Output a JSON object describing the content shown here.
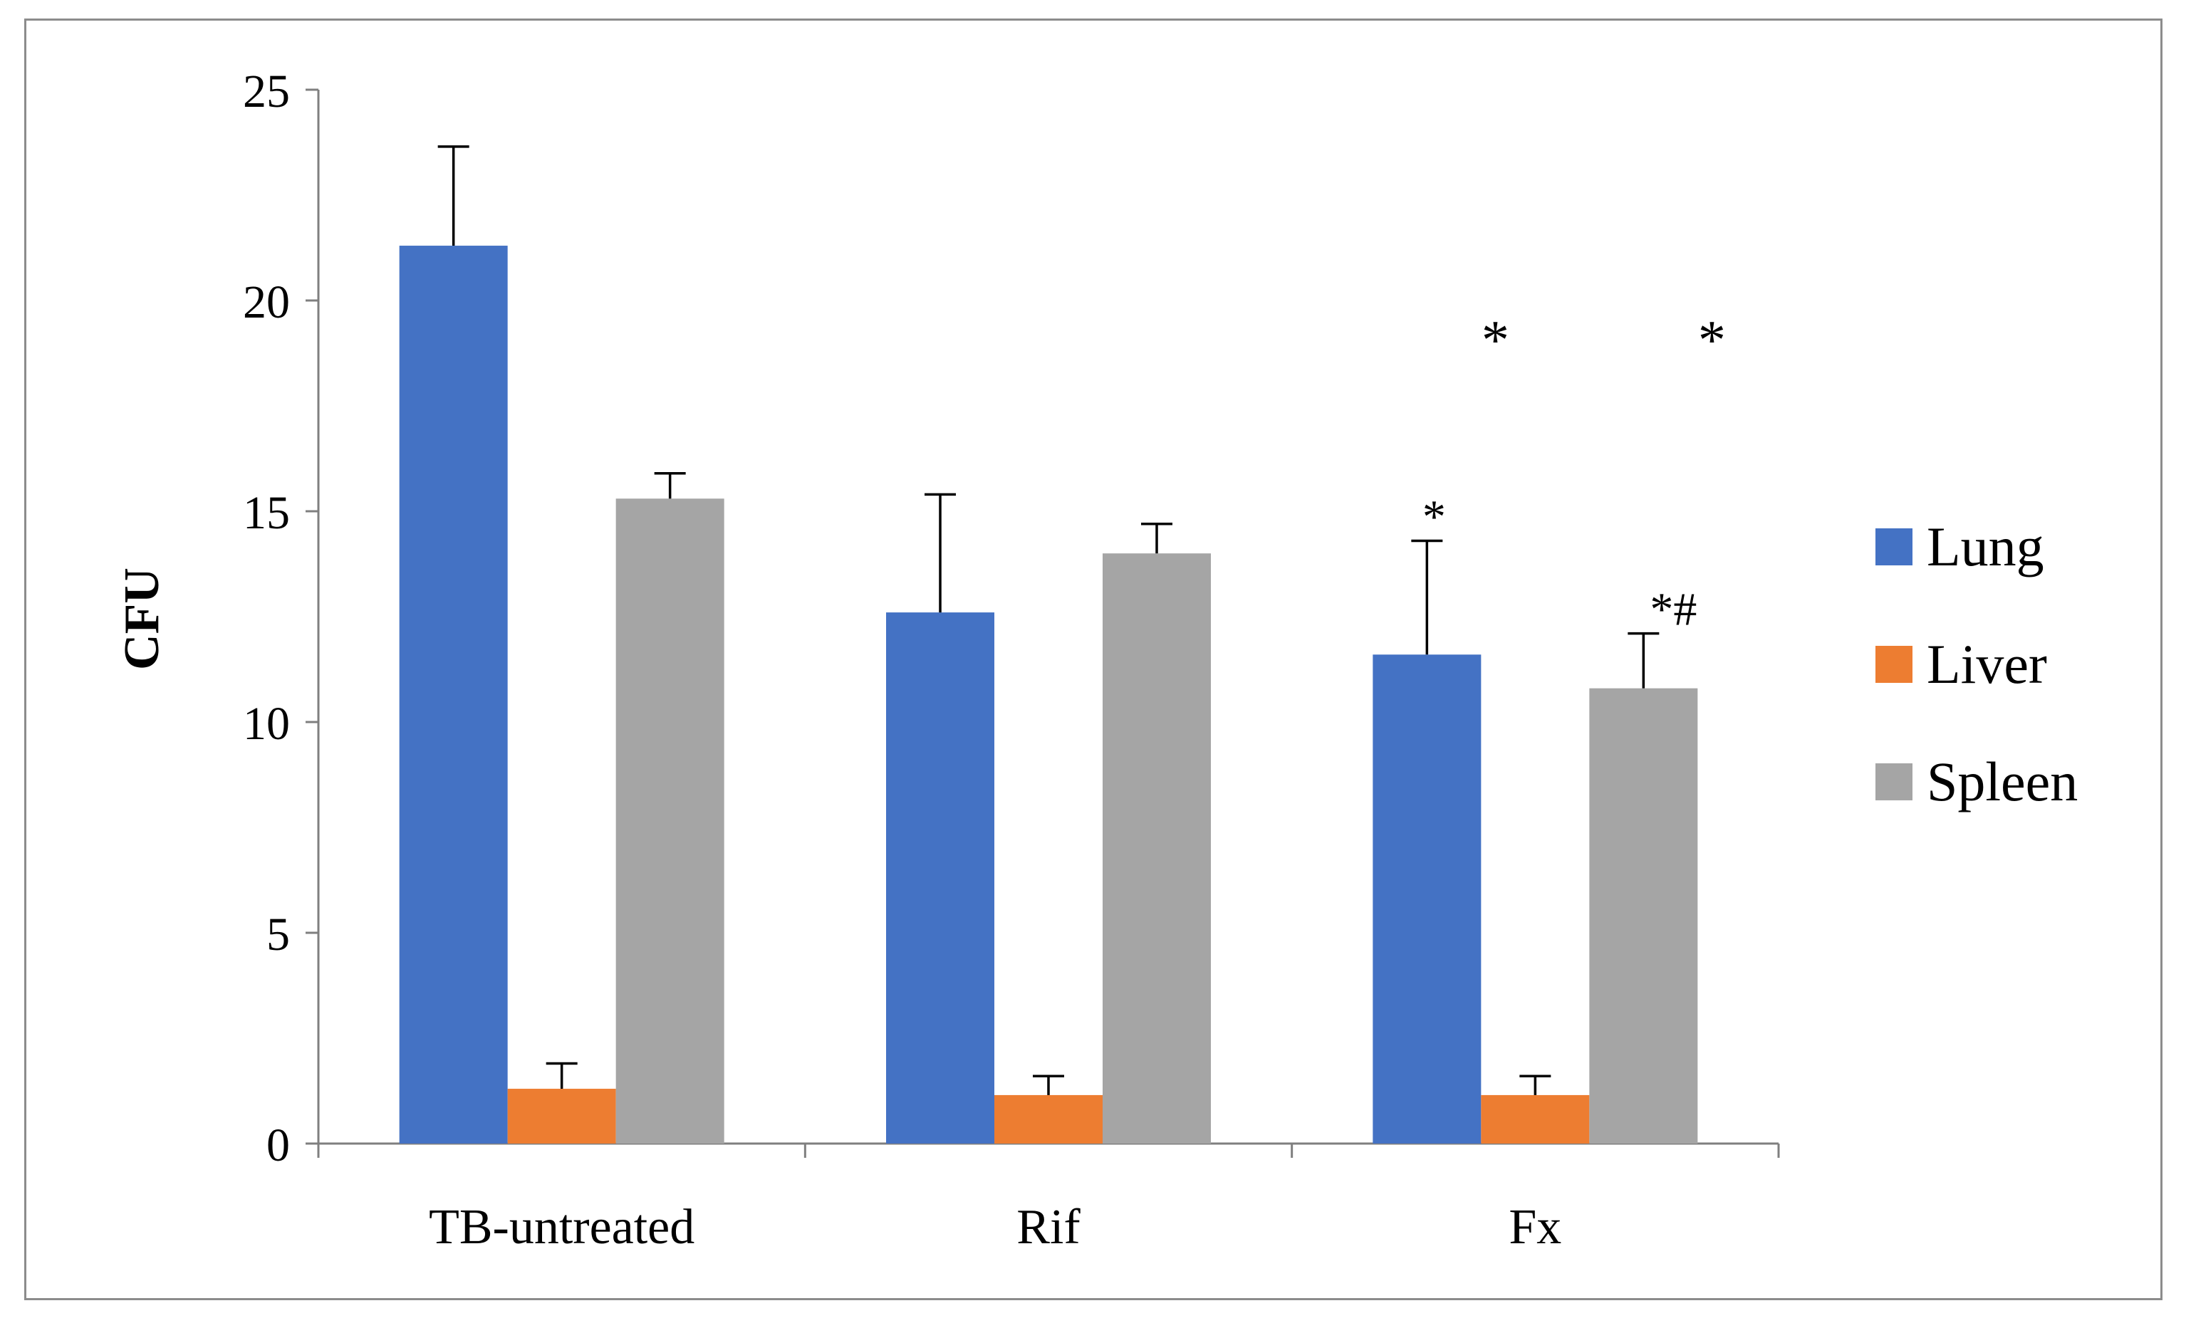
{
  "chart_data": {
    "type": "bar",
    "ylabel": "CFU",
    "xlabel": "",
    "ylim": [
      0,
      25
    ],
    "yticks": [
      "0",
      "5",
      "10",
      "15",
      "20",
      "25"
    ],
    "categories": [
      "TB-untreated",
      "Rif",
      "Fx"
    ],
    "series": [
      {
        "name": "Lung",
        "color": "#4472c4",
        "values": [
          21.3,
          12.6,
          11.6
        ],
        "errors": [
          2.35,
          2.8,
          2.7
        ]
      },
      {
        "name": "Liver",
        "color": "#ed7d31",
        "values": [
          1.3,
          1.15,
          1.15
        ],
        "errors": [
          0.6,
          0.45,
          0.45
        ]
      },
      {
        "name": "Spleen",
        "color": "#a5a5a5",
        "values": [
          15.3,
          14.0,
          10.8
        ],
        "errors": [
          0.6,
          0.7,
          1.3
        ]
      }
    ],
    "annotations": [
      {
        "text": "*",
        "category": "Fx",
        "series": "Lung"
      },
      {
        "text": "*#",
        "category": "Fx",
        "series": "Spleen"
      },
      {
        "text": "*",
        "y": 19.3,
        "category": "Fx",
        "between": [
          "Lung",
          "Liver"
        ]
      },
      {
        "text": "*",
        "y": 19.3,
        "category": "Fx",
        "after": "Spleen"
      }
    ],
    "legend": {
      "position": "right"
    },
    "grid": false
  }
}
